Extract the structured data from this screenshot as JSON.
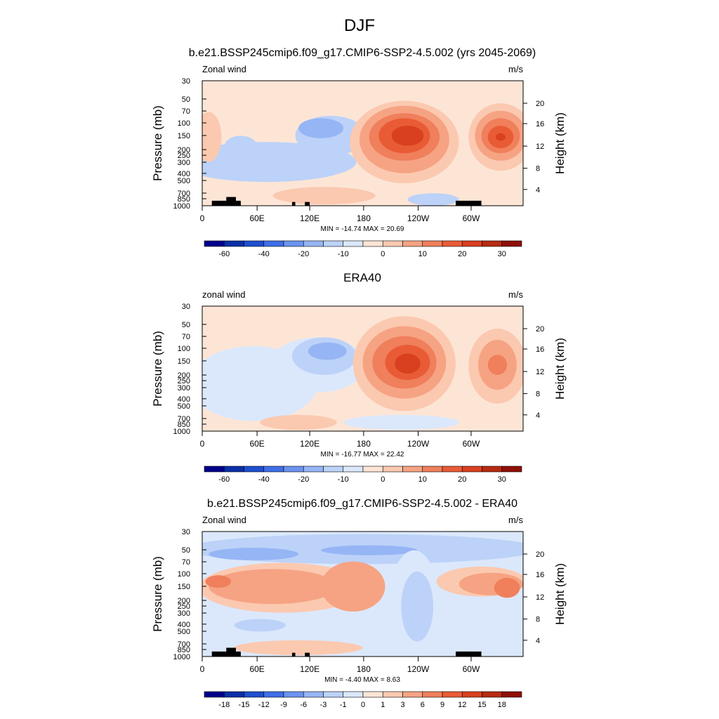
{
  "page": {
    "title": "DJF"
  },
  "chart_data": [
    {
      "type": "heatmap",
      "title": "b.e21.BSSP245cmip6.f09_g17.CMIP6-SSP2-4.5.002 (yrs 2045-2069)",
      "left_label": "Zonal wind",
      "right_label": "m/s",
      "ylabel": "Pressure (mb)",
      "ylabel_right": "Height (km)",
      "xticks": [
        "0",
        "60E",
        "120E",
        "180",
        "120W",
        "60W"
      ],
      "yticks": [
        "30",
        "50",
        "70",
        "100",
        "150",
        "200",
        "250",
        "300",
        "400",
        "500",
        "700",
        "850",
        "1000"
      ],
      "height_ticks": [
        "20",
        "16",
        "12",
        "8",
        "4"
      ],
      "stats": "MIN = -14.74  MAX =  20.69",
      "colorbar_labels": [
        "-60",
        "-40",
        "-20",
        "-10",
        "0",
        "10",
        "20",
        "30"
      ],
      "colorbar_levels": [
        -70,
        -60,
        -50,
        -40,
        -30,
        -20,
        -15,
        -10,
        -5,
        0,
        5,
        10,
        15,
        20,
        25,
        30,
        40
      ],
      "x_range_deg": [
        0,
        360
      ],
      "y_range_mb": [
        1000,
        30
      ],
      "log_pressure": true,
      "features": [
        {
          "region": "jet core near 150-200 mb, ~140W",
          "approx_max": 20
        },
        {
          "region": "jet near 150 mb, ~30W",
          "approx_max": 18
        },
        {
          "region": "easterlies near 120-150 mb, ~110E",
          "approx_min": -8
        }
      ],
      "topography_present": true
    },
    {
      "type": "heatmap",
      "title": "ERA40",
      "left_label": "zonal wind",
      "right_label": "m/s",
      "ylabel": "Pressure (mb)",
      "ylabel_right": "Height (km)",
      "xticks": [
        "0",
        "60E",
        "120E",
        "180",
        "120W",
        "60W"
      ],
      "yticks": [
        "30",
        "50",
        "70",
        "100",
        "150",
        "200",
        "250",
        "300",
        "400",
        "500",
        "700",
        "850",
        "1000"
      ],
      "height_ticks": [
        "20",
        "16",
        "12",
        "8",
        "4"
      ],
      "stats": "MIN = -16.77  MAX =  22.42",
      "colorbar_labels": [
        "-60",
        "-40",
        "-20",
        "-10",
        "0",
        "10",
        "20",
        "30"
      ],
      "colorbar_levels": [
        -70,
        -60,
        -50,
        -40,
        -30,
        -20,
        -15,
        -10,
        -5,
        0,
        5,
        10,
        15,
        20,
        25,
        30,
        40
      ],
      "x_range_deg": [
        0,
        360
      ],
      "y_range_mb": [
        1000,
        30
      ],
      "log_pressure": true,
      "features": [
        {
          "region": "jet core near 150-200 mb, ~140W",
          "approx_max": 22
        },
        {
          "region": "jet near 150 mb, ~30W",
          "approx_max": 18
        },
        {
          "region": "easterlies near 120-150 mb, ~120E",
          "approx_min": -12
        }
      ],
      "topography_present": false
    },
    {
      "type": "heatmap",
      "title": "b.e21.BSSP245cmip6.f09_g17.CMIP6-SSP2-4.5.002 - ERA40",
      "left_label": "Zonal wind",
      "right_label": "m/s",
      "ylabel": "Pressure (mb)",
      "ylabel_right": "Height (km)",
      "xticks": [
        "0",
        "60E",
        "120E",
        "180",
        "120W",
        "60W"
      ],
      "yticks": [
        "30",
        "50",
        "70",
        "100",
        "150",
        "200",
        "250",
        "300",
        "400",
        "500",
        "700",
        "850",
        "1000"
      ],
      "height_ticks": [
        "20",
        "16",
        "12",
        "8",
        "4"
      ],
      "stats": "MIN =  -4.40  MAX =   8.63",
      "colorbar_labels": [
        "-18",
        "-15",
        "-12",
        "-9",
        "-6",
        "-3",
        "-1",
        "0",
        "1",
        "3",
        "6",
        "9",
        "12",
        "15",
        "18"
      ],
      "colorbar_levels": [
        -21,
        -18,
        -15,
        -12,
        -9,
        -6,
        -3,
        -1,
        0,
        1,
        3,
        6,
        9,
        12,
        15,
        18,
        21
      ],
      "x_range_deg": [
        0,
        360
      ],
      "y_range_mb": [
        1000,
        30
      ],
      "log_pressure": true,
      "features": [
        {
          "region": "positive band 100-300 mb, 0-180",
          "approx_max": 6
        },
        {
          "region": "negative band near 50 mb",
          "approx_min": -3
        },
        {
          "region": "negative column ~150W, 200-700 mb",
          "approx_min": -4
        },
        {
          "region": "positive maximum ~30W, 100-200 mb",
          "approx_max": 8
        }
      ],
      "topography_present": true
    }
  ],
  "colors": {
    "scale": [
      "#00008b",
      "#0a2fa8",
      "#1e4fd0",
      "#3f6ee8",
      "#6b93f0",
      "#96b5f5",
      "#bcd2f8",
      "#dbe8fc",
      "#fde5d6",
      "#fbc9b0",
      "#f6a383",
      "#f07f5c",
      "#e95b35",
      "#d8401f",
      "#b82a12",
      "#8f0f05"
    ]
  }
}
